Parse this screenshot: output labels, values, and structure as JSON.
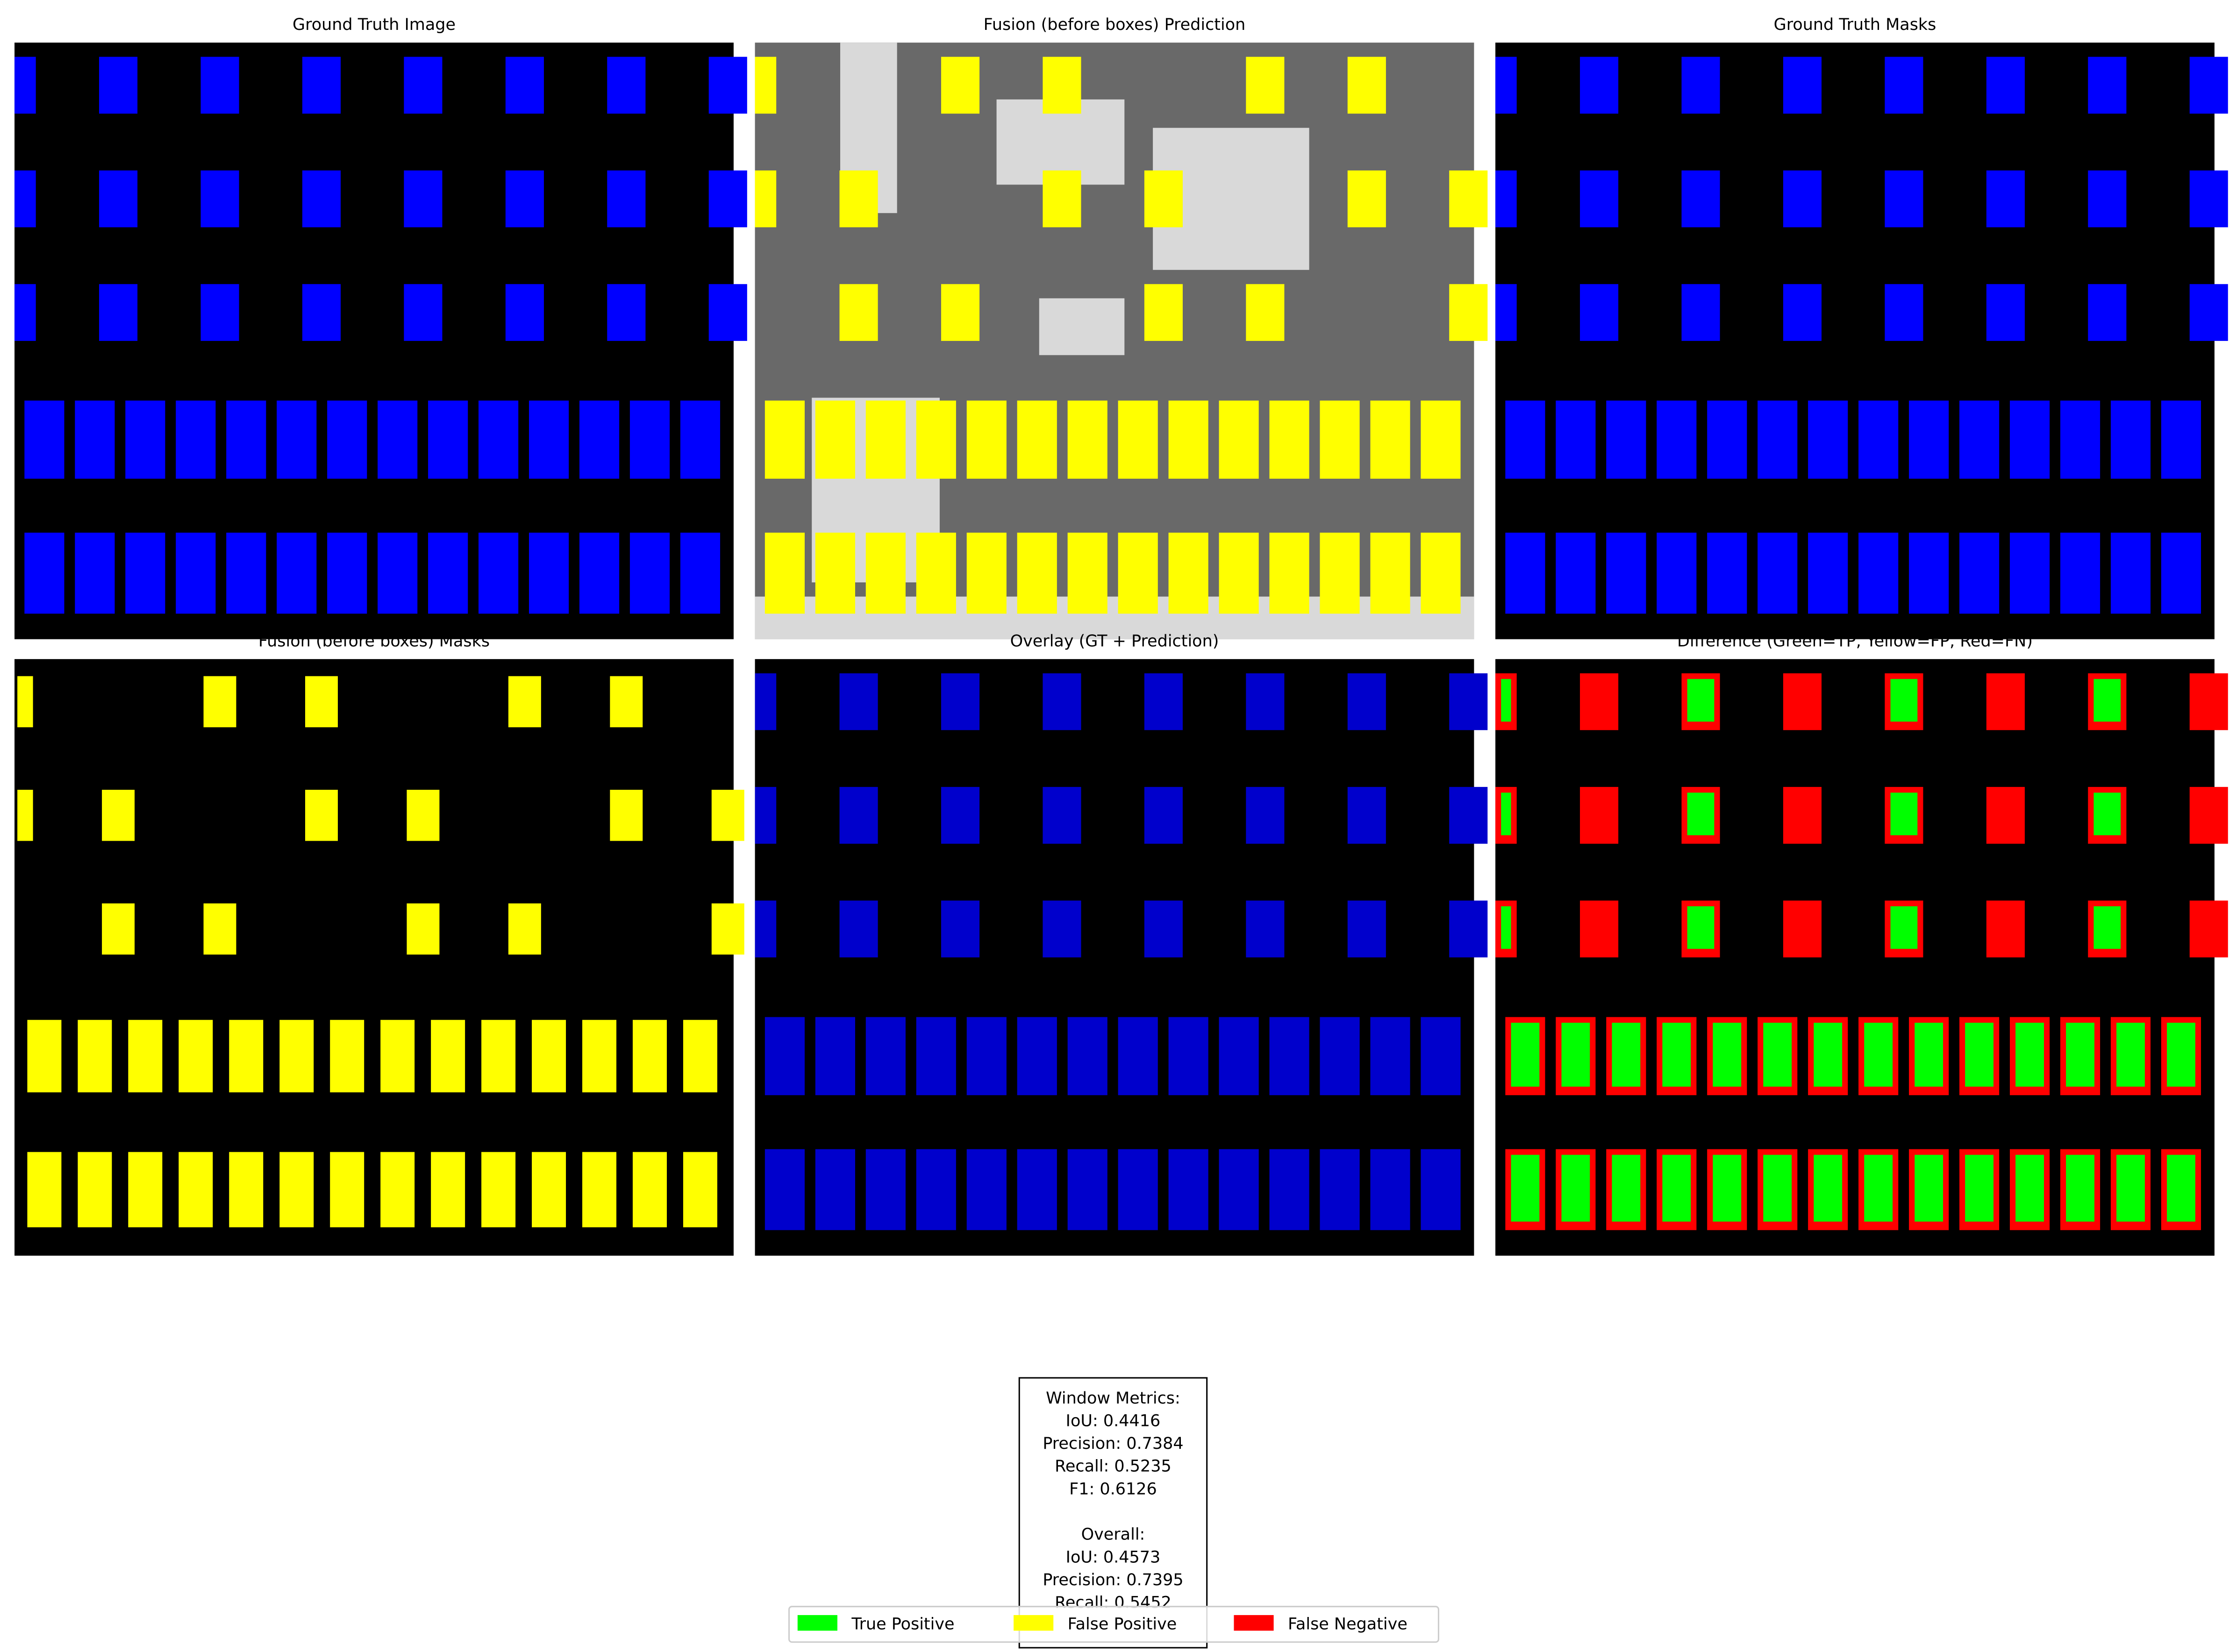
{
  "panels": [
    {
      "title": "Ground Truth Image"
    },
    {
      "title": "Fusion (before boxes) Prediction"
    },
    {
      "title": "Ground Truth Masks"
    },
    {
      "title": "Fusion (before boxes) Masks"
    },
    {
      "title": "Overlay (GT + Prediction)"
    },
    {
      "title": "Difference (Green=TP, Yellow=FP, Red=FN)"
    }
  ],
  "metrics": {
    "window_heading": "Window Metrics:",
    "window": [
      "IoU: 0.4416",
      "Precision: 0.7384",
      "Recall: 0.5235",
      "F1: 0.6126"
    ],
    "overall_heading": "Overall:",
    "overall": [
      "IoU: 0.4573",
      "Precision: 0.7395",
      "Recall: 0.5452"
    ]
  },
  "legend": [
    {
      "label": "True Positive",
      "color": "#00ff00"
    },
    {
      "label": "False Positive",
      "color": "#ffff00"
    },
    {
      "label": "False Negative",
      "color": "#ff0000"
    }
  ]
}
